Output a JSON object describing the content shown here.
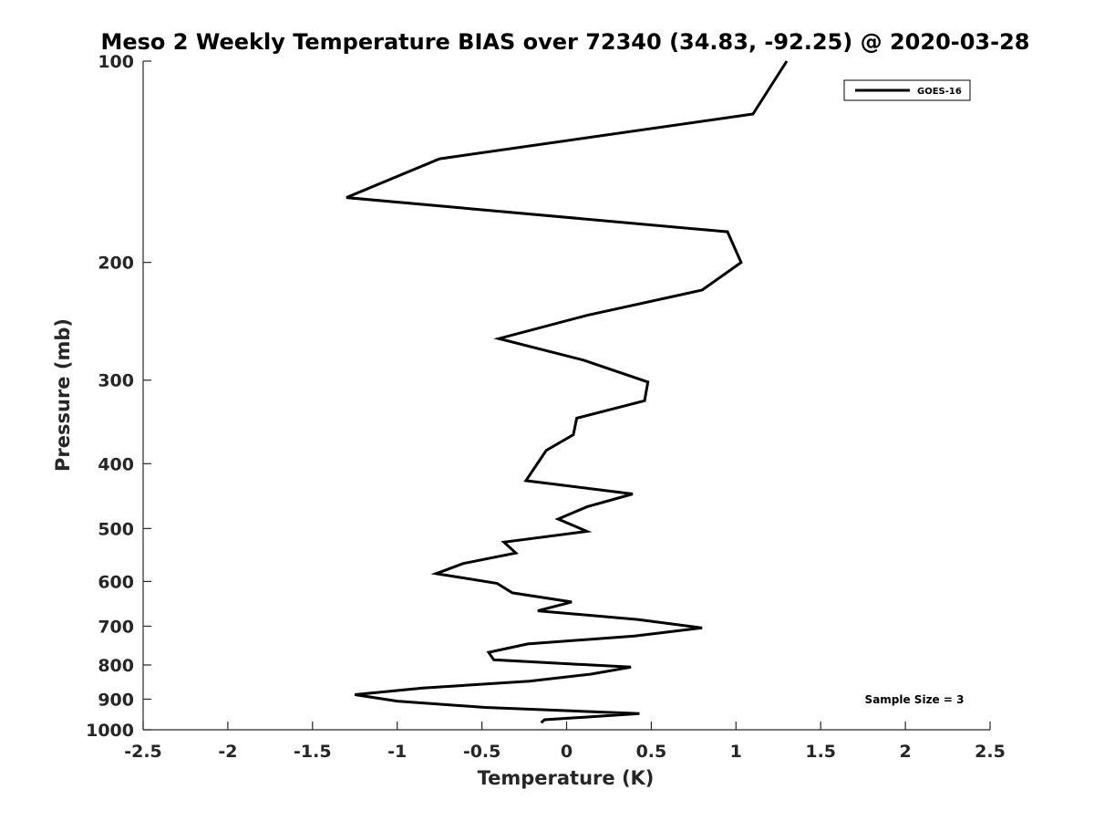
{
  "chart_data": {
    "type": "line",
    "title": "Meso 2 Weekly Temperature BIAS over 72340 (34.83, -92.25) @ 2020-03-28",
    "xlabel": "Temperature (K)",
    "ylabel": "Pressure (mb)",
    "xlim": [
      -2.5,
      2.5
    ],
    "ylim": [
      1000,
      100
    ],
    "y_scale": "log",
    "grid": false,
    "legend_position": "top-right",
    "x_ticks": [
      "-2.5",
      "-2",
      "-1.5",
      "-1",
      "-0.5",
      "0",
      "0.5",
      "1",
      "1.5",
      "2",
      "2.5"
    ],
    "x_tick_values": [
      -2.5,
      -2,
      -1.5,
      -1,
      -0.5,
      0,
      0.5,
      1,
      1.5,
      2,
      2.5
    ],
    "y_ticks": [
      "100",
      "200",
      "300",
      "400",
      "500",
      "600",
      "700",
      "800",
      "900",
      "1000"
    ],
    "y_tick_values": [
      100,
      200,
      300,
      400,
      500,
      600,
      700,
      800,
      900,
      1000
    ],
    "series": [
      {
        "name": "GOES-16",
        "color": "#000000",
        "points": [
          {
            "x": 1.3,
            "y": 100
          },
          {
            "x": 1.1,
            "y": 120
          },
          {
            "x": -0.75,
            "y": 140
          },
          {
            "x": -1.3,
            "y": 160
          },
          {
            "x": 0.95,
            "y": 180
          },
          {
            "x": 1.03,
            "y": 200
          },
          {
            "x": 0.8,
            "y": 220
          },
          {
            "x": 0.12,
            "y": 240
          },
          {
            "x": -0.4,
            "y": 260
          },
          {
            "x": 0.1,
            "y": 280
          },
          {
            "x": 0.48,
            "y": 302
          },
          {
            "x": 0.46,
            "y": 322
          },
          {
            "x": 0.06,
            "y": 342
          },
          {
            "x": 0.04,
            "y": 362
          },
          {
            "x": -0.12,
            "y": 382
          },
          {
            "x": -0.24,
            "y": 424
          },
          {
            "x": 0.39,
            "y": 444
          },
          {
            "x": 0.12,
            "y": 464
          },
          {
            "x": -0.05,
            "y": 484
          },
          {
            "x": 0.12,
            "y": 505
          },
          {
            "x": -0.37,
            "y": 524
          },
          {
            "x": -0.3,
            "y": 544
          },
          {
            "x": -0.61,
            "y": 564
          },
          {
            "x": -0.77,
            "y": 584
          },
          {
            "x": -0.41,
            "y": 604
          },
          {
            "x": -0.32,
            "y": 624
          },
          {
            "x": 0.03,
            "y": 644
          },
          {
            "x": -0.17,
            "y": 664
          },
          {
            "x": 0.42,
            "y": 684
          },
          {
            "x": 0.8,
            "y": 704
          },
          {
            "x": 0.4,
            "y": 724
          },
          {
            "x": -0.23,
            "y": 744
          },
          {
            "x": -0.46,
            "y": 766
          },
          {
            "x": -0.43,
            "y": 786
          },
          {
            "x": 0.38,
            "y": 806
          },
          {
            "x": 0.14,
            "y": 826
          },
          {
            "x": -0.22,
            "y": 846
          },
          {
            "x": -0.85,
            "y": 866
          },
          {
            "x": -1.25,
            "y": 886
          },
          {
            "x": -1.0,
            "y": 906
          },
          {
            "x": -0.48,
            "y": 926
          },
          {
            "x": 0.43,
            "y": 946
          },
          {
            "x": -0.13,
            "y": 966
          },
          {
            "x": -0.15,
            "y": 976
          }
        ]
      }
    ],
    "annotations": [
      "Sample Size = 3"
    ]
  }
}
